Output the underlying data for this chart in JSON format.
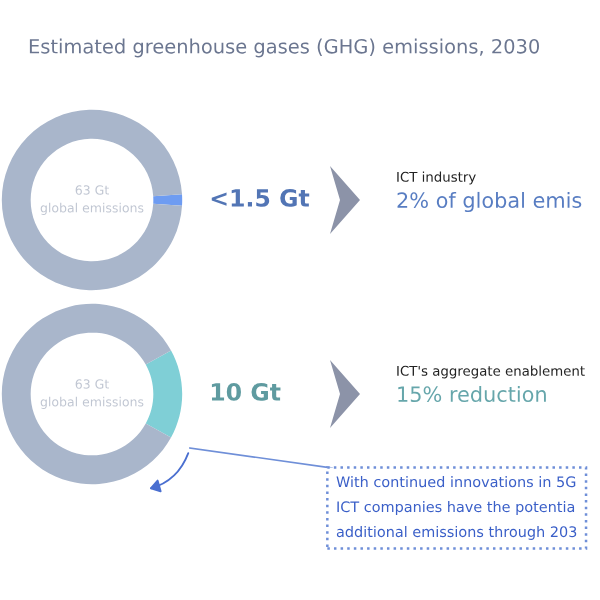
{
  "chart_data": [
    {
      "type": "donut",
      "title": "Estimated greenhouse gases (GHG) emissions, 2030",
      "categories": [
        "<1.5 Gt",
        null
      ],
      "values": [
        2,
        98
      ],
      "colors": [
        "#6e9cf2",
        "#a9b6cb"
      ],
      "annotations": [
        "63 Gt\nglobal emissions",
        "ICT industry",
        "2% of global emis"
      ]
    },
    {
      "type": "donut",
      "categories": [
        "10 Gt",
        null
      ],
      "values": [
        16,
        84
      ],
      "colors": [
        "#7fcfd6",
        "#a9b6cb"
      ],
      "annotations": [
        "63 Gt\nglobal emissions",
        "ICT's aggregate enablement",
        "15% reduction",
        "With continued innovations in 5G\nICT companies have the potentia\nadditional emissions through 203"
      ]
    }
  ]
}
